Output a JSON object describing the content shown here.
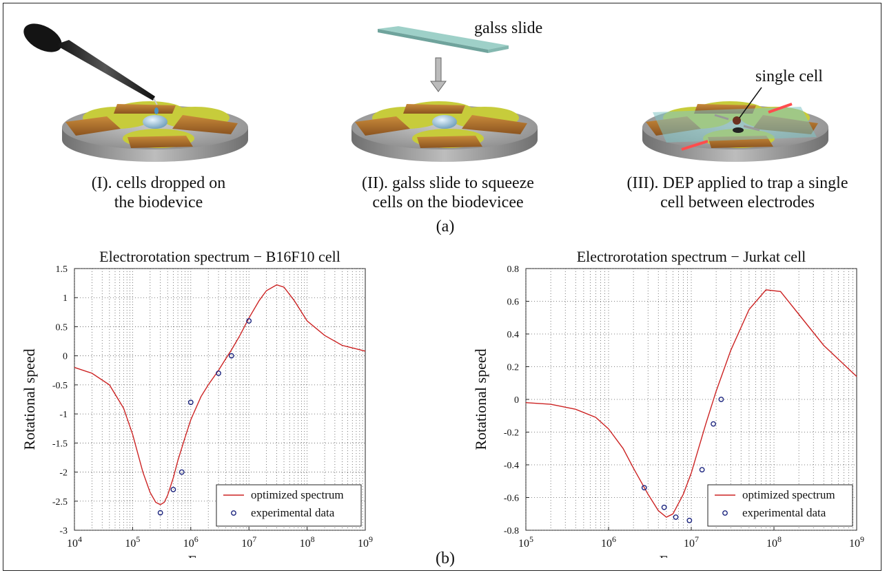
{
  "panel_a": {
    "label": "(a)",
    "steps": [
      {
        "caption_line1": "(I). cells dropped on",
        "caption_line2": "the biodevice"
      },
      {
        "caption_line1": "(II). galss slide to squeeze",
        "caption_line2": "cells on the biodevicee",
        "annotation": "galss slide"
      },
      {
        "caption_line1": "(III). DEP applied to trap a single",
        "caption_line2": "cell between electrodes",
        "annotation": "single cell"
      }
    ]
  },
  "panel_b": {
    "label": "(b)"
  },
  "colors": {
    "curve": "#cc2222",
    "points": "#1a237e",
    "grid": "#555555"
  },
  "chart_data": [
    {
      "type": "line",
      "title": "Electrorotation spectrum − B16F10 cell",
      "xlabel": "Frequency",
      "ylabel": "Rotational speed",
      "xscale": "log",
      "xlim": [
        10000,
        1000000000
      ],
      "ylim": [
        -3,
        1.5
      ],
      "xticks": [
        {
          "v": 10000,
          "m": "10",
          "e": "4"
        },
        {
          "v": 100000,
          "m": "10",
          "e": "5"
        },
        {
          "v": 1000000,
          "m": "10",
          "e": "6"
        },
        {
          "v": 10000000,
          "m": "10",
          "e": "7"
        },
        {
          "v": 100000000,
          "m": "10",
          "e": "8"
        },
        {
          "v": 1000000000,
          "m": "10",
          "e": "9"
        }
      ],
      "yticks": [
        1.5,
        1,
        0.5,
        0,
        -0.5,
        -1,
        -1.5,
        -2,
        -2.5,
        -3
      ],
      "ytick_labels": [
        "1.5",
        "1",
        "0.5",
        "0",
        "-0.5",
        "-1",
        "-1.5",
        "-2",
        "-2.5",
        "-3"
      ],
      "grid": true,
      "legend_position": "bottom-right",
      "series": [
        {
          "name": "optimized spectrum",
          "kind": "line",
          "x": [
            10000,
            20000,
            40000,
            70000,
            100000,
            150000,
            200000,
            250000,
            300000,
            350000,
            400000,
            500000,
            600000,
            800000,
            1000000,
            1500000,
            2000000,
            3000000,
            4000000,
            5000000,
            7000000,
            10000000,
            15000000,
            20000000,
            30000000,
            40000000,
            60000000,
            100000000,
            200000000,
            400000000,
            1000000000
          ],
          "y": [
            -0.2,
            -0.3,
            -0.5,
            -0.9,
            -1.35,
            -2.0,
            -2.35,
            -2.52,
            -2.56,
            -2.52,
            -2.4,
            -2.1,
            -1.8,
            -1.4,
            -1.1,
            -0.7,
            -0.5,
            -0.25,
            -0.05,
            0.1,
            0.35,
            0.65,
            0.95,
            1.12,
            1.22,
            1.18,
            0.95,
            0.6,
            0.35,
            0.18,
            0.08
          ]
        },
        {
          "name": "experimental data",
          "kind": "scatter",
          "x": [
            300000,
            500000,
            700000,
            1000000,
            3000000,
            5000000,
            10000000
          ],
          "y": [
            -2.7,
            -2.3,
            -2.0,
            -0.8,
            -0.3,
            0.0,
            0.6
          ]
        }
      ]
    },
    {
      "type": "line",
      "title": "Electrorotation spectrum − Jurkat cell",
      "xlabel": "Frequency",
      "ylabel": "Rotational speed",
      "xscale": "log",
      "xlim": [
        100000,
        1000000000
      ],
      "ylim": [
        -0.8,
        0.8
      ],
      "xticks": [
        {
          "v": 100000,
          "m": "10",
          "e": "5"
        },
        {
          "v": 1000000,
          "m": "10",
          "e": "6"
        },
        {
          "v": 10000000,
          "m": "10",
          "e": "7"
        },
        {
          "v": 100000000,
          "m": "10",
          "e": "8"
        },
        {
          "v": 1000000000,
          "m": "10",
          "e": "9"
        }
      ],
      "yticks": [
        0.8,
        0.6,
        0.4,
        0.2,
        0,
        -0.2,
        -0.4,
        -0.6,
        -0.8
      ],
      "ytick_labels": [
        "0.8",
        "0.6",
        "0.4",
        "0.2",
        "0",
        "-0.2",
        "-0.4",
        "-0.6",
        "-0.8"
      ],
      "grid": true,
      "legend_position": "bottom-right",
      "series": [
        {
          "name": "optimized spectrum",
          "kind": "line",
          "x": [
            100000,
            200000,
            400000,
            700000,
            1000000,
            1500000,
            2000000,
            3000000,
            4000000,
            5000000,
            6000000,
            8000000,
            10000000,
            15000000,
            20000000,
            30000000,
            50000000,
            80000000,
            120000000,
            200000000,
            400000000,
            1000000000
          ],
          "y": [
            -0.02,
            -0.03,
            -0.06,
            -0.11,
            -0.18,
            -0.3,
            -0.42,
            -0.58,
            -0.68,
            -0.72,
            -0.7,
            -0.58,
            -0.45,
            -0.15,
            0.05,
            0.3,
            0.55,
            0.67,
            0.66,
            0.52,
            0.33,
            0.14
          ]
        },
        {
          "name": "experimental data",
          "kind": "scatter",
          "x": [
            2700000,
            4700000,
            6500000,
            9500000,
            13500000,
            18500000,
            23000000
          ],
          "y": [
            -0.54,
            -0.66,
            -0.72,
            -0.74,
            -0.43,
            -0.15,
            0.0
          ]
        }
      ]
    }
  ]
}
